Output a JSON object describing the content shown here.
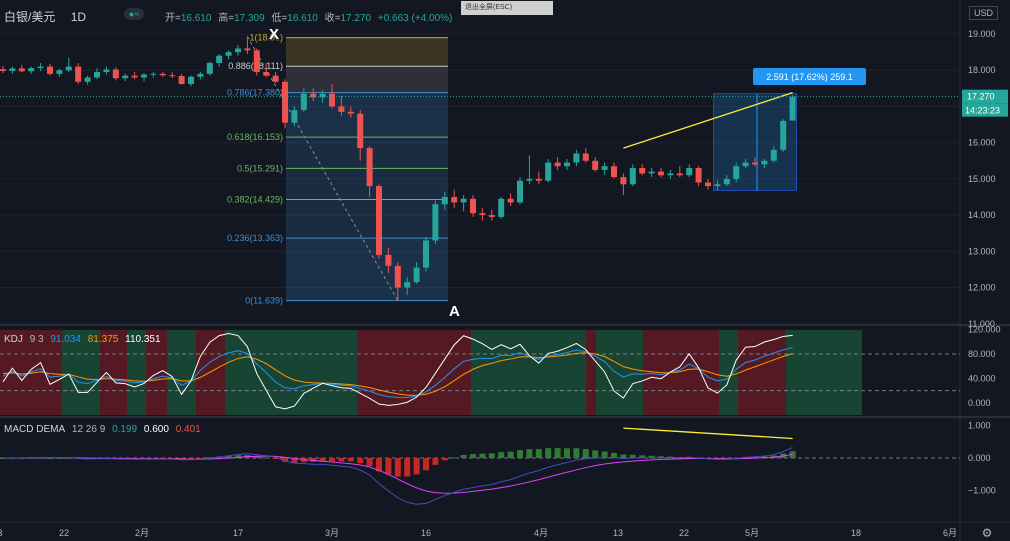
{
  "header": {
    "symbol": "白银/美元",
    "interval": "1D",
    "open_label": "开=",
    "open": "16.610",
    "high_label": "高=",
    "high": "17.309",
    "low_label": "低=",
    "low": "16.610",
    "close_label": "收=",
    "close": "17.270",
    "change": "+0.663 (+4.00%)",
    "esc_label": "退出全屏(ESC)",
    "currency": "USD"
  },
  "price_scale": {
    "ticks": [
      "19.000",
      "18.000",
      "17.000",
      "16.000",
      "15.000",
      "14.000",
      "13.000",
      "12.000",
      "11.000"
    ],
    "last_price": "17.270",
    "countdown": "14:23:23"
  },
  "fib_levels": [
    {
      "ratio": "1",
      "price": "18.9..",
      "value": 18.9,
      "color": "#c8a82a"
    },
    {
      "ratio": "0.886",
      "price": "18.111",
      "value": 18.111,
      "color": "#cccccc"
    },
    {
      "ratio": "0.786",
      "price": "17.380",
      "value": 17.38,
      "color": "#3d8fd6"
    },
    {
      "ratio": "0.618",
      "price": "16.153",
      "value": 16.153,
      "color": "#6bb85a"
    },
    {
      "ratio": "0.5",
      "price": "15.291",
      "value": 15.291,
      "color": "#6bb85a"
    },
    {
      "ratio": "0.382",
      "price": "14.429",
      "value": 14.429,
      "color": "#6bb85a"
    },
    {
      "ratio": "0.236",
      "price": "13.363",
      "value": 13.363,
      "color": "#3d8fd6"
    },
    {
      "ratio": "0",
      "price": "11.639",
      "value": 11.639,
      "color": "#3d8fd6"
    }
  ],
  "annotations": {
    "x_label": "X",
    "a_label": "A",
    "measure_label": "2.591 (17.62%) 259.1"
  },
  "kdj": {
    "name": "KDJ",
    "params": "9 3",
    "k": "91.034",
    "d": "81.375",
    "j": "110.351",
    "ticks": [
      "120.000",
      "80.000",
      "40.000",
      "0.000"
    ]
  },
  "macd": {
    "name": "MACD DEMA",
    "params": "12 26 9",
    "hist": "0.199",
    "macd": "0.600",
    "signal": "0.401",
    "ticks": [
      "1.000",
      "0.000",
      "−1.000"
    ]
  },
  "time_axis": [
    "3",
    "22",
    "2月",
    "17",
    "3月",
    "16",
    "4月",
    "13",
    "22",
    "5月",
    "18",
    "6月"
  ],
  "colors": {
    "up": "#26a69a",
    "down": "#ef5350",
    "bg": "#131722",
    "grid": "#1e222d",
    "text": "#b2b5be"
  },
  "chart_data": [
    {
      "type": "candlestick",
      "title": "白银/美元 1D",
      "ylim": [
        11.0,
        19.3
      ],
      "candles": [
        {
          "o": 18.03,
          "h": 18.12,
          "l": 17.92,
          "c": 17.98
        },
        {
          "o": 17.98,
          "h": 18.1,
          "l": 17.9,
          "c": 18.05
        },
        {
          "o": 18.05,
          "h": 18.15,
          "l": 17.95,
          "c": 17.97
        },
        {
          "o": 17.97,
          "h": 18.1,
          "l": 17.9,
          "c": 18.06
        },
        {
          "o": 18.06,
          "h": 18.2,
          "l": 17.98,
          "c": 18.1
        },
        {
          "o": 18.1,
          "h": 18.18,
          "l": 17.85,
          "c": 17.9
        },
        {
          "o": 17.9,
          "h": 18.05,
          "l": 17.82,
          "c": 18.0
        },
        {
          "o": 18.0,
          "h": 18.35,
          "l": 17.95,
          "c": 18.1
        },
        {
          "o": 18.1,
          "h": 18.2,
          "l": 17.62,
          "c": 17.68
        },
        {
          "o": 17.68,
          "h": 17.85,
          "l": 17.6,
          "c": 17.8
        },
        {
          "o": 17.8,
          "h": 18.05,
          "l": 17.75,
          "c": 17.95
        },
        {
          "o": 17.95,
          "h": 18.1,
          "l": 17.88,
          "c": 18.02
        },
        {
          "o": 18.02,
          "h": 18.08,
          "l": 17.72,
          "c": 17.78
        },
        {
          "o": 17.78,
          "h": 17.9,
          "l": 17.7,
          "c": 17.85
        },
        {
          "o": 17.85,
          "h": 17.95,
          "l": 17.75,
          "c": 17.8
        },
        {
          "o": 17.8,
          "h": 17.92,
          "l": 17.7,
          "c": 17.88
        },
        {
          "o": 17.88,
          "h": 17.95,
          "l": 17.8,
          "c": 17.9
        },
        {
          "o": 17.9,
          "h": 17.95,
          "l": 17.82,
          "c": 17.86
        },
        {
          "o": 17.86,
          "h": 17.95,
          "l": 17.78,
          "c": 17.84
        },
        {
          "o": 17.84,
          "h": 17.9,
          "l": 17.6,
          "c": 17.62
        },
        {
          "o": 17.62,
          "h": 17.85,
          "l": 17.55,
          "c": 17.82
        },
        {
          "o": 17.82,
          "h": 17.95,
          "l": 17.75,
          "c": 17.9
        },
        {
          "o": 17.9,
          "h": 18.25,
          "l": 17.85,
          "c": 18.2
        },
        {
          "o": 18.2,
          "h": 18.45,
          "l": 18.1,
          "c": 18.4
        },
        {
          "o": 18.4,
          "h": 18.55,
          "l": 18.3,
          "c": 18.5
        },
        {
          "o": 18.5,
          "h": 18.7,
          "l": 18.4,
          "c": 18.6
        },
        {
          "o": 18.6,
          "h": 18.93,
          "l": 18.45,
          "c": 18.55
        },
        {
          "o": 18.55,
          "h": 18.6,
          "l": 17.85,
          "c": 17.95
        },
        {
          "o": 17.95,
          "h": 18.2,
          "l": 17.8,
          "c": 17.85
        },
        {
          "o": 17.85,
          "h": 17.95,
          "l": 17.65,
          "c": 17.68
        },
        {
          "o": 17.68,
          "h": 17.75,
          "l": 16.4,
          "c": 16.55
        },
        {
          "o": 16.55,
          "h": 17.0,
          "l": 16.45,
          "c": 16.9
        },
        {
          "o": 16.9,
          "h": 17.5,
          "l": 16.85,
          "c": 17.35
        },
        {
          "o": 17.35,
          "h": 17.5,
          "l": 17.15,
          "c": 17.25
        },
        {
          "o": 17.25,
          "h": 17.45,
          "l": 17.1,
          "c": 17.35
        },
        {
          "o": 17.35,
          "h": 17.62,
          "l": 16.95,
          "c": 17.0
        },
        {
          "o": 17.0,
          "h": 17.3,
          "l": 16.75,
          "c": 16.85
        },
        {
          "o": 16.85,
          "h": 17.0,
          "l": 16.7,
          "c": 16.8
        },
        {
          "o": 16.8,
          "h": 16.9,
          "l": 15.5,
          "c": 15.85
        },
        {
          "o": 15.85,
          "h": 15.9,
          "l": 14.5,
          "c": 14.8
        },
        {
          "o": 14.8,
          "h": 14.85,
          "l": 12.8,
          "c": 12.9
        },
        {
          "o": 12.9,
          "h": 13.1,
          "l": 12.4,
          "c": 12.6
        },
        {
          "o": 12.6,
          "h": 12.7,
          "l": 11.64,
          "c": 12.0
        },
        {
          "o": 12.0,
          "h": 12.3,
          "l": 11.8,
          "c": 12.15
        },
        {
          "o": 12.15,
          "h": 12.7,
          "l": 12.1,
          "c": 12.55
        },
        {
          "o": 12.55,
          "h": 13.4,
          "l": 12.45,
          "c": 13.3
        },
        {
          "o": 13.3,
          "h": 14.4,
          "l": 13.2,
          "c": 14.3
        },
        {
          "o": 14.3,
          "h": 14.65,
          "l": 14.15,
          "c": 14.5
        },
        {
          "o": 14.5,
          "h": 14.7,
          "l": 14.2,
          "c": 14.35
        },
        {
          "o": 14.35,
          "h": 14.55,
          "l": 14.1,
          "c": 14.45
        },
        {
          "o": 14.45,
          "h": 14.55,
          "l": 13.95,
          "c": 14.05
        },
        {
          "o": 14.05,
          "h": 14.2,
          "l": 13.85,
          "c": 14.0
        },
        {
          "o": 14.0,
          "h": 14.15,
          "l": 13.85,
          "c": 13.95
        },
        {
          "o": 13.95,
          "h": 14.5,
          "l": 13.9,
          "c": 14.45
        },
        {
          "o": 14.45,
          "h": 14.6,
          "l": 14.25,
          "c": 14.35
        },
        {
          "o": 14.35,
          "h": 15.05,
          "l": 14.3,
          "c": 14.95
        },
        {
          "o": 14.95,
          "h": 15.65,
          "l": 14.85,
          "c": 15.0
        },
        {
          "o": 15.0,
          "h": 15.2,
          "l": 14.85,
          "c": 14.95
        },
        {
          "o": 14.95,
          "h": 15.55,
          "l": 14.9,
          "c": 15.45
        },
        {
          "o": 15.45,
          "h": 15.6,
          "l": 15.25,
          "c": 15.35
        },
        {
          "o": 15.35,
          "h": 15.55,
          "l": 15.25,
          "c": 15.45
        },
        {
          "o": 15.45,
          "h": 15.8,
          "l": 15.35,
          "c": 15.7
        },
        {
          "o": 15.7,
          "h": 15.85,
          "l": 15.45,
          "c": 15.5
        },
        {
          "o": 15.5,
          "h": 15.6,
          "l": 15.2,
          "c": 15.25
        },
        {
          "o": 15.25,
          "h": 15.45,
          "l": 15.1,
          "c": 15.35
        },
        {
          "o": 15.35,
          "h": 15.45,
          "l": 15.0,
          "c": 15.05
        },
        {
          "o": 15.05,
          "h": 15.15,
          "l": 14.55,
          "c": 14.85
        },
        {
          "o": 14.85,
          "h": 15.4,
          "l": 14.8,
          "c": 15.3
        },
        {
          "o": 15.3,
          "h": 15.4,
          "l": 15.1,
          "c": 15.15
        },
        {
          "o": 15.15,
          "h": 15.3,
          "l": 15.05,
          "c": 15.2
        },
        {
          "o": 15.2,
          "h": 15.3,
          "l": 15.05,
          "c": 15.1
        },
        {
          "o": 15.1,
          "h": 15.25,
          "l": 15.0,
          "c": 15.15
        },
        {
          "o": 15.15,
          "h": 15.35,
          "l": 15.05,
          "c": 15.1
        },
        {
          "o": 15.1,
          "h": 15.4,
          "l": 15.05,
          "c": 15.3
        },
        {
          "o": 15.3,
          "h": 15.35,
          "l": 14.8,
          "c": 14.9
        },
        {
          "o": 14.9,
          "h": 15.0,
          "l": 14.7,
          "c": 14.8
        },
        {
          "o": 14.8,
          "h": 14.95,
          "l": 14.68,
          "c": 14.85
        },
        {
          "o": 14.85,
          "h": 15.1,
          "l": 14.8,
          "c": 15.0
        },
        {
          "o": 15.0,
          "h": 15.45,
          "l": 14.9,
          "c": 15.35
        },
        {
          "o": 15.35,
          "h": 15.55,
          "l": 15.3,
          "c": 15.45
        },
        {
          "o": 15.45,
          "h": 15.6,
          "l": 15.35,
          "c": 15.4
        },
        {
          "o": 15.4,
          "h": 15.55,
          "l": 15.3,
          "c": 15.5
        },
        {
          "o": 15.5,
          "h": 15.9,
          "l": 15.45,
          "c": 15.8
        },
        {
          "o": 15.8,
          "h": 16.65,
          "l": 15.75,
          "c": 16.6
        },
        {
          "o": 16.61,
          "h": 17.31,
          "l": 16.61,
          "c": 17.27
        }
      ],
      "fib_levels": [
        18.93,
        18.111,
        17.38,
        16.153,
        15.291,
        14.429,
        13.363,
        11.639
      ]
    },
    {
      "type": "line",
      "title": "KDJ 9 3",
      "ylim": [
        -15,
        120
      ],
      "series": [
        {
          "name": "K",
          "last": 91.034
        },
        {
          "name": "D",
          "last": 81.375
        },
        {
          "name": "J",
          "last": 110.351
        }
      ]
    },
    {
      "type": "bar",
      "title": "MACD DEMA 12 26 9",
      "ylim": [
        -1.7,
        1.1
      ],
      "series": [
        {
          "name": "Histogram",
          "last": 0.199
        },
        {
          "name": "MACD",
          "last": 0.6
        },
        {
          "name": "Signal",
          "last": 0.401
        }
      ]
    }
  ]
}
